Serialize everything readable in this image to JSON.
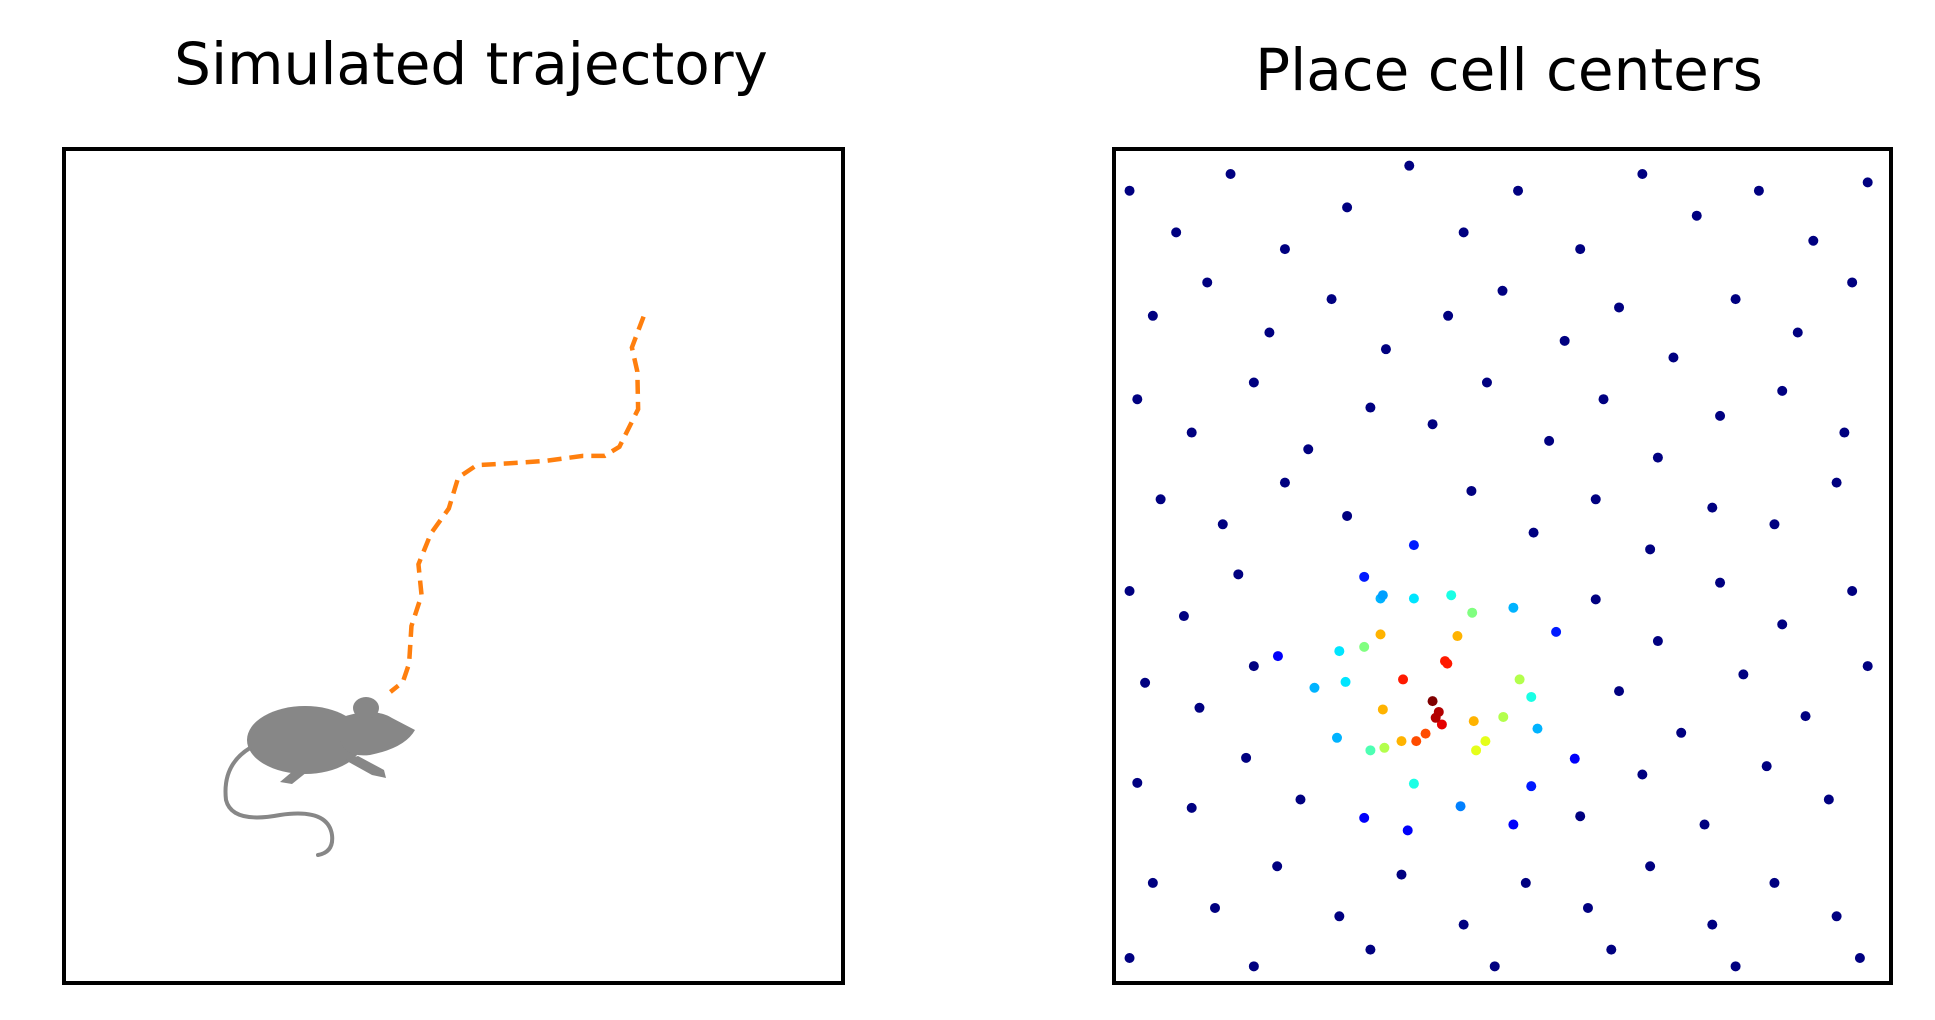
{
  "chart_data": [
    {
      "type": "line",
      "title": "Simulated trajectory",
      "color": "#ff7f0e",
      "dashed": true,
      "xlim": [
        0,
        1
      ],
      "ylim": [
        0,
        1
      ],
      "x": [
        0.744,
        0.729,
        0.736,
        0.737,
        0.713,
        0.694,
        0.666,
        0.618,
        0.57,
        0.53,
        0.506,
        0.494,
        0.471,
        0.455,
        0.459,
        0.446,
        0.443,
        0.435,
        0.419
      ],
      "y": [
        0.799,
        0.762,
        0.733,
        0.688,
        0.643,
        0.632,
        0.632,
        0.626,
        0.623,
        0.621,
        0.606,
        0.569,
        0.539,
        0.502,
        0.465,
        0.428,
        0.383,
        0.361,
        0.349
      ]
    },
    {
      "type": "scatter",
      "title": "Place cell centers",
      "colormap": "jet",
      "xlim": [
        0,
        1
      ],
      "ylim": [
        0,
        1
      ],
      "x": [
        0.02,
        0.08,
        0.15,
        0.22,
        0.3,
        0.38,
        0.45,
        0.52,
        0.6,
        0.68,
        0.75,
        0.83,
        0.9,
        0.97,
        0.05,
        0.12,
        0.2,
        0.28,
        0.35,
        0.43,
        0.5,
        0.58,
        0.65,
        0.72,
        0.8,
        0.88,
        0.95,
        0.03,
        0.1,
        0.18,
        0.25,
        0.33,
        0.41,
        0.48,
        0.56,
        0.63,
        0.7,
        0.78,
        0.86,
        0.94,
        0.06,
        0.14,
        0.22,
        0.3,
        0.46,
        0.54,
        0.62,
        0.69,
        0.77,
        0.85,
        0.93,
        0.02,
        0.09,
        0.16,
        0.62,
        0.7,
        0.78,
        0.86,
        0.95,
        0.04,
        0.11,
        0.18,
        0.65,
        0.73,
        0.81,
        0.89,
        0.97,
        0.03,
        0.1,
        0.17,
        0.24,
        0.6,
        0.68,
        0.76,
        0.84,
        0.92,
        0.05,
        0.13,
        0.21,
        0.29,
        0.37,
        0.45,
        0.53,
        0.61,
        0.69,
        0.77,
        0.85,
        0.93,
        0.02,
        0.18,
        0.33,
        0.49,
        0.64,
        0.8,
        0.96,
        0.41,
        0.418,
        0.422,
        0.414,
        0.372,
        0.429,
        0.426,
        0.401,
        0.389,
        0.346,
        0.37,
        0.442,
        0.463,
        0.343,
        0.466,
        0.478,
        0.522,
        0.501,
        0.322,
        0.461,
        0.348,
        0.33,
        0.386,
        0.434,
        0.386,
        0.29,
        0.537,
        0.298,
        0.343,
        0.545,
        0.287,
        0.258,
        0.514,
        0.446,
        0.346,
        0.386,
        0.322,
        0.569,
        0.537,
        0.322,
        0.593,
        0.211,
        0.378,
        0.514
      ],
      "y": [
        0.95,
        0.9,
        0.97,
        0.88,
        0.93,
        0.98,
        0.9,
        0.95,
        0.88,
        0.97,
        0.92,
        0.95,
        0.89,
        0.96,
        0.8,
        0.84,
        0.78,
        0.82,
        0.76,
        0.8,
        0.83,
        0.77,
        0.81,
        0.75,
        0.82,
        0.78,
        0.84,
        0.7,
        0.66,
        0.72,
        0.64,
        0.69,
        0.67,
        0.72,
        0.65,
        0.7,
        0.63,
        0.68,
        0.71,
        0.66,
        0.58,
        0.55,
        0.6,
        0.56,
        0.59,
        0.54,
        0.58,
        0.52,
        0.57,
        0.55,
        0.6,
        0.47,
        0.44,
        0.49,
        0.46,
        0.41,
        0.48,
        0.43,
        0.47,
        0.36,
        0.33,
        0.38,
        0.35,
        0.3,
        0.37,
        0.32,
        0.38,
        0.24,
        0.21,
        0.27,
        0.22,
        0.2,
        0.25,
        0.19,
        0.26,
        0.22,
        0.12,
        0.09,
        0.14,
        0.08,
        0.13,
        0.07,
        0.12,
        0.09,
        0.14,
        0.07,
        0.12,
        0.08,
        0.03,
        0.02,
        0.04,
        0.02,
        0.04,
        0.02,
        0.03,
        0.338,
        0.325,
        0.31,
        0.318,
        0.364,
        0.383,
        0.386,
        0.299,
        0.29,
        0.328,
        0.29,
        0.416,
        0.314,
        0.418,
        0.279,
        0.29,
        0.364,
        0.319,
        0.403,
        0.444,
        0.282,
        0.279,
        0.239,
        0.465,
        0.461,
        0.398,
        0.343,
        0.361,
        0.461,
        0.305,
        0.294,
        0.354,
        0.45,
        0.212,
        0.465,
        0.525,
        0.487,
        0.421,
        0.236,
        0.198,
        0.269,
        0.392,
        0.183,
        0.19
      ],
      "values": [
        0,
        0,
        0,
        0,
        0,
        0,
        0,
        0,
        0,
        0,
        0,
        0,
        0,
        0,
        0,
        0,
        0,
        0,
        0,
        0,
        0,
        0,
        0,
        0,
        0,
        0,
        0,
        0,
        0,
        0,
        0,
        0,
        0,
        0,
        0,
        0,
        0,
        0,
        0,
        0,
        0,
        0,
        0,
        0,
        0,
        0,
        0,
        0,
        0,
        0,
        0,
        0,
        0,
        0,
        0,
        0,
        0,
        0,
        0,
        0,
        0,
        0,
        0,
        0,
        0,
        0,
        0,
        0,
        0,
        0,
        0,
        0,
        0,
        0,
        0,
        0,
        0,
        0,
        0,
        0,
        0,
        0,
        0,
        0,
        0,
        0,
        0,
        0,
        0,
        0,
        0,
        0,
        0,
        0,
        0,
        1.0,
        0.95,
        0.9,
        0.95,
        0.85,
        0.85,
        0.85,
        0.8,
        0.8,
        0.7,
        0.7,
        0.7,
        0.7,
        0.7,
        0.6,
        0.6,
        0.55,
        0.55,
        0.5,
        0.5,
        0.55,
        0.45,
        0.4,
        0.4,
        0.35,
        0.35,
        0.4,
        0.35,
        0.3,
        0.3,
        0.3,
        0.3,
        0.3,
        0.25,
        0.28,
        0.15,
        0.15,
        0.15,
        0.15,
        0.12,
        0.12,
        0.12,
        0.12,
        0.12
      ]
    }
  ]
}
